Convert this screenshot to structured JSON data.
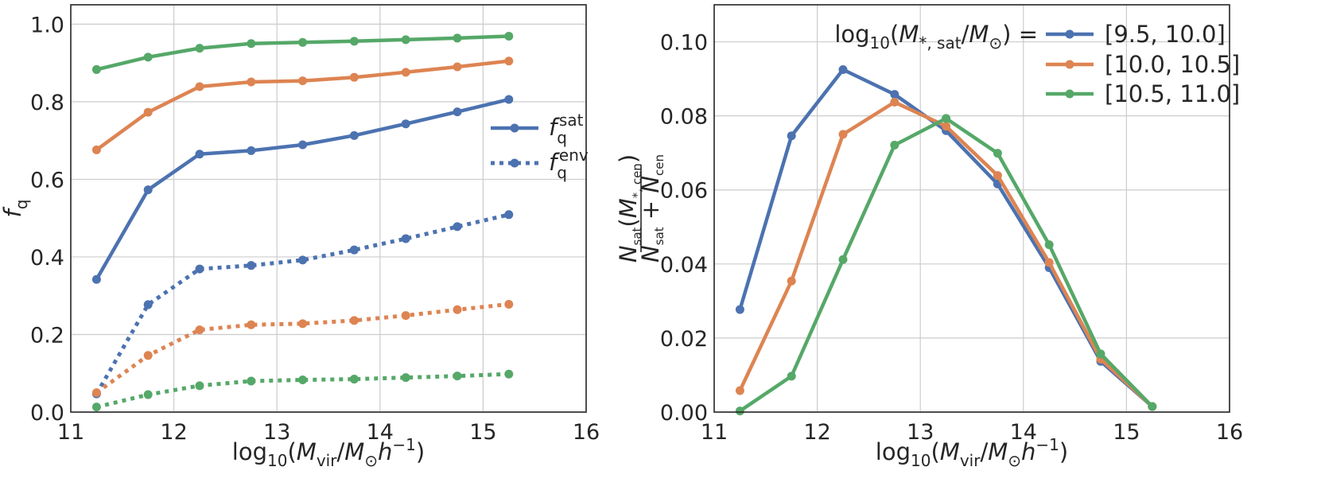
{
  "colors": {
    "blue": "#4C72B0",
    "orange": "#DD8452",
    "green": "#55A868"
  },
  "chart_data": [
    {
      "type": "line",
      "panel": "left",
      "xlabel": "log10(Mvir/M⊙h−1)",
      "ylabel": "fq",
      "xlim": [
        11,
        16
      ],
      "ylim": [
        0.0,
        1.05
      ],
      "xticks": [
        11,
        12,
        13,
        14,
        15,
        16
      ],
      "yticks": [
        0.0,
        0.2,
        0.4,
        0.6,
        0.8,
        1.0
      ],
      "xtick_labels": [
        "11",
        "12",
        "13",
        "14",
        "15",
        "16"
      ],
      "ytick_labels": [
        "0.0",
        "0.2",
        "0.4",
        "0.6",
        "0.8",
        "1.0"
      ],
      "grid": true,
      "legend_position": "right",
      "legend": [
        {
          "label": "f_q^sat",
          "style": "solid",
          "color": "#4C72B0"
        },
        {
          "label": "f_q^env",
          "style": "dotted",
          "color": "#4C72B0"
        }
      ],
      "x": [
        11.25,
        11.75,
        12.25,
        12.75,
        13.25,
        13.75,
        14.25,
        14.75,
        15.25
      ],
      "series": [
        {
          "name": "sat [9.5,10.0]",
          "style": "solid",
          "color": "#4C72B0",
          "values": [
            0.342,
            0.573,
            0.665,
            0.674,
            0.689,
            0.713,
            0.743,
            0.774,
            0.806
          ]
        },
        {
          "name": "sat [10.0,10.5]",
          "style": "solid",
          "color": "#DD8452",
          "values": [
            0.676,
            0.773,
            0.839,
            0.851,
            0.854,
            0.863,
            0.876,
            0.89,
            0.905
          ]
        },
        {
          "name": "sat [10.5,11.0]",
          "style": "solid",
          "color": "#55A868",
          "values": [
            0.883,
            0.915,
            0.938,
            0.95,
            0.953,
            0.956,
            0.96,
            0.964,
            0.969
          ]
        },
        {
          "name": "env [9.5,10.0]",
          "style": "dotted",
          "color": "#4C72B0",
          "values": [
            0.047,
            0.277,
            0.369,
            0.378,
            0.392,
            0.418,
            0.447,
            0.478,
            0.509
          ]
        },
        {
          "name": "env [10.0,10.5]",
          "style": "dotted",
          "color": "#DD8452",
          "values": [
            0.05,
            0.146,
            0.212,
            0.225,
            0.228,
            0.236,
            0.249,
            0.264,
            0.278
          ]
        },
        {
          "name": "env [10.5,11.0]",
          "style": "dotted",
          "color": "#55A868",
          "values": [
            0.013,
            0.045,
            0.068,
            0.08,
            0.083,
            0.085,
            0.089,
            0.093,
            0.098
          ]
        }
      ]
    },
    {
      "type": "line",
      "panel": "right",
      "xlabel": "log10(Mvir/M⊙h−1)",
      "ylabel": "Nsat(M*,cen) / (Nsat + Ncen)",
      "xlim": [
        11,
        16
      ],
      "ylim": [
        0.0,
        0.11
      ],
      "xticks": [
        11,
        12,
        13,
        14,
        15,
        16
      ],
      "yticks": [
        0.0,
        0.02,
        0.04,
        0.06,
        0.08,
        0.1
      ],
      "xtick_labels": [
        "11",
        "12",
        "13",
        "14",
        "15",
        "16"
      ],
      "ytick_labels": [
        "0.00",
        "0.02",
        "0.04",
        "0.06",
        "0.08",
        "0.10"
      ],
      "grid": true,
      "legend_position": "top-right",
      "legend_title": "log10(M*,sat/M⊙) =",
      "x": [
        11.25,
        11.75,
        12.25,
        12.75,
        13.25,
        13.75,
        14.25,
        14.75,
        15.25
      ],
      "series": [
        {
          "name": "[9.5, 10.0]",
          "color": "#4C72B0",
          "values": [
            0.0277,
            0.0746,
            0.0925,
            0.0858,
            0.076,
            0.0616,
            0.039,
            0.0137,
            0.0015
          ]
        },
        {
          "name": "[10.0, 10.5]",
          "color": "#DD8452",
          "values": [
            0.0058,
            0.0354,
            0.075,
            0.0837,
            0.0772,
            0.0639,
            0.0404,
            0.0143,
            0.0015
          ]
        },
        {
          "name": "[10.5, 11.0]",
          "color": "#55A868",
          "values": [
            0.0003,
            0.0097,
            0.0412,
            0.0721,
            0.0793,
            0.0699,
            0.0452,
            0.0157,
            0.0015
          ]
        }
      ]
    }
  ]
}
